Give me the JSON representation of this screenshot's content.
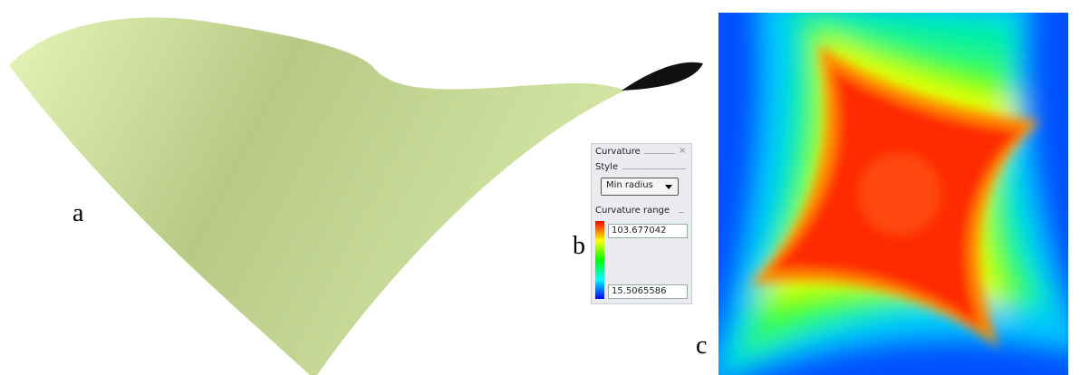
{
  "labels": {
    "a": "a",
    "b": "b",
    "c": "c"
  },
  "panel": {
    "title": "Curvature",
    "style_label": "Style",
    "style_value": "Min radius",
    "range_label": "Curvature range",
    "range_max": "103.677042",
    "range_min": "15.5065586"
  }
}
